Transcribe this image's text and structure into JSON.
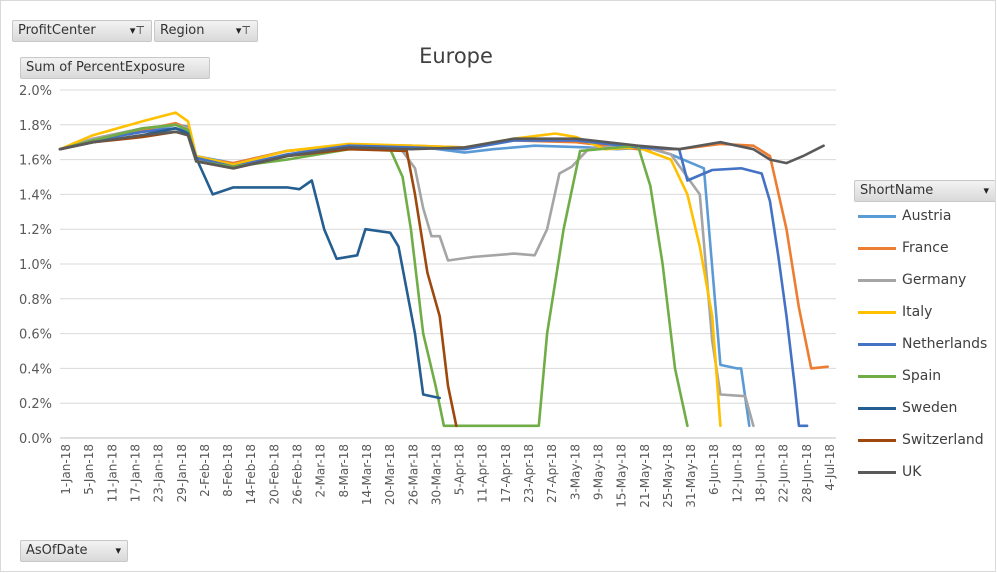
{
  "filters": {
    "profit_center": "ProfitCenter",
    "region": "Region",
    "values_field": "Sum of PercentExposure",
    "series_field": "ShortName",
    "axis_field": "AsOfDate"
  },
  "icons": {
    "filter": "filter-dropdown-icon",
    "dropdown": "dropdown-arrow-icon"
  },
  "chart_data": {
    "type": "line",
    "title": "Europe",
    "xlabel": "",
    "ylabel": "",
    "ylim": [
      0,
      0.02
    ],
    "y_ticks": [
      "0.0%",
      "0.2%",
      "0.4%",
      "0.6%",
      "0.8%",
      "1.0%",
      "1.2%",
      "1.4%",
      "1.6%",
      "1.8%",
      "2.0%"
    ],
    "x_tick_labels": [
      "1-Jan-18",
      "5-Jan-18",
      "11-Jan-18",
      "17-Jan-18",
      "23-Jan-18",
      "29-Jan-18",
      "2-Feb-18",
      "8-Feb-18",
      "14-Feb-18",
      "20-Feb-18",
      "26-Feb-18",
      "2-Mar-18",
      "8-Mar-18",
      "14-Mar-18",
      "20-Mar-18",
      "26-Mar-18",
      "30-Mar-18",
      "5-Apr-18",
      "11-Apr-18",
      "17-Apr-18",
      "23-Apr-18",
      "27-Apr-18",
      "3-May-18",
      "9-May-18",
      "15-May-18",
      "21-May-18",
      "25-May-18",
      "31-May-18",
      "6-Jun-18",
      "12-Jun-18",
      "18-Jun-18",
      "22-Jun-18",
      "28-Jun-18",
      "4-Jul-18"
    ],
    "grid": true,
    "legend_position": "right",
    "x_format": "day index from 1-Jan-18",
    "series": [
      {
        "name": "Austria",
        "color": "#5B9BD5",
        "points": [
          [
            0,
            1.66
          ],
          [
            8,
            1.72
          ],
          [
            20,
            1.76
          ],
          [
            28,
            1.8
          ],
          [
            31,
            1.79
          ],
          [
            33,
            1.62
          ],
          [
            42,
            1.58
          ],
          [
            55,
            1.65
          ],
          [
            70,
            1.68
          ],
          [
            85,
            1.68
          ],
          [
            98,
            1.64
          ],
          [
            105,
            1.66
          ],
          [
            115,
            1.68
          ],
          [
            128,
            1.67
          ],
          [
            135,
            1.66
          ],
          [
            142,
            1.67
          ],
          [
            148,
            1.63
          ],
          [
            156,
            1.55
          ],
          [
            160,
            0.42
          ],
          [
            164,
            0.4
          ],
          [
            165,
            0.4
          ],
          [
            167,
            0.07
          ]
        ]
      },
      {
        "name": "France",
        "color": "#ED7D31",
        "points": [
          [
            0,
            1.66
          ],
          [
            8,
            1.71
          ],
          [
            20,
            1.77
          ],
          [
            28,
            1.81
          ],
          [
            31,
            1.78
          ],
          [
            33,
            1.61
          ],
          [
            42,
            1.58
          ],
          [
            55,
            1.65
          ],
          [
            70,
            1.68
          ],
          [
            85,
            1.68
          ],
          [
            98,
            1.67
          ],
          [
            110,
            1.71
          ],
          [
            125,
            1.7
          ],
          [
            140,
            1.66
          ],
          [
            150,
            1.66
          ],
          [
            160,
            1.69
          ],
          [
            168,
            1.68
          ],
          [
            172,
            1.62
          ],
          [
            176,
            1.2
          ],
          [
            179,
            0.75
          ],
          [
            182,
            0.4
          ],
          [
            186,
            0.41
          ]
        ]
      },
      {
        "name": "Germany",
        "color": "#A5A5A5",
        "points": [
          [
            0,
            1.66
          ],
          [
            8,
            1.72
          ],
          [
            20,
            1.78
          ],
          [
            28,
            1.8
          ],
          [
            31,
            1.78
          ],
          [
            33,
            1.6
          ],
          [
            42,
            1.57
          ],
          [
            55,
            1.65
          ],
          [
            70,
            1.68
          ],
          [
            82,
            1.68
          ],
          [
            86,
            1.55
          ],
          [
            88,
            1.32
          ],
          [
            90,
            1.16
          ],
          [
            92,
            1.16
          ],
          [
            94,
            1.02
          ],
          [
            100,
            1.04
          ],
          [
            110,
            1.06
          ],
          [
            115,
            1.05
          ],
          [
            118,
            1.2
          ],
          [
            121,
            1.52
          ],
          [
            124,
            1.56
          ],
          [
            128,
            1.66
          ],
          [
            136,
            1.68
          ],
          [
            142,
            1.67
          ],
          [
            148,
            1.63
          ],
          [
            155,
            1.4
          ],
          [
            158,
            0.56
          ],
          [
            160,
            0.25
          ],
          [
            166,
            0.24
          ],
          [
            168,
            0.07
          ]
        ]
      },
      {
        "name": "Italy",
        "color": "#FFC000",
        "points": [
          [
            0,
            1.66
          ],
          [
            8,
            1.74
          ],
          [
            20,
            1.82
          ],
          [
            28,
            1.87
          ],
          [
            31,
            1.82
          ],
          [
            33,
            1.62
          ],
          [
            42,
            1.57
          ],
          [
            55,
            1.65
          ],
          [
            70,
            1.69
          ],
          [
            85,
            1.68
          ],
          [
            98,
            1.67
          ],
          [
            110,
            1.72
          ],
          [
            120,
            1.75
          ],
          [
            125,
            1.73
          ],
          [
            132,
            1.66
          ],
          [
            140,
            1.67
          ],
          [
            148,
            1.6
          ],
          [
            152,
            1.4
          ],
          [
            155,
            1.1
          ],
          [
            158,
            0.7
          ],
          [
            160,
            0.07
          ]
        ]
      },
      {
        "name": "Netherlands",
        "color": "#4472C4",
        "points": [
          [
            0,
            1.66
          ],
          [
            8,
            1.71
          ],
          [
            20,
            1.76
          ],
          [
            28,
            1.78
          ],
          [
            31,
            1.76
          ],
          [
            33,
            1.61
          ],
          [
            42,
            1.56
          ],
          [
            55,
            1.63
          ],
          [
            70,
            1.68
          ],
          [
            85,
            1.67
          ],
          [
            98,
            1.66
          ],
          [
            110,
            1.71
          ],
          [
            125,
            1.71
          ],
          [
            140,
            1.67
          ],
          [
            150,
            1.66
          ],
          [
            152,
            1.48
          ],
          [
            158,
            1.54
          ],
          [
            165,
            1.55
          ],
          [
            170,
            1.52
          ],
          [
            172,
            1.36
          ],
          [
            174,
            1.05
          ],
          [
            176,
            0.7
          ],
          [
            178,
            0.3
          ],
          [
            179,
            0.07
          ],
          [
            181,
            0.07
          ]
        ]
      },
      {
        "name": "Spain",
        "color": "#70AD47",
        "points": [
          [
            0,
            1.66
          ],
          [
            8,
            1.71
          ],
          [
            20,
            1.78
          ],
          [
            28,
            1.8
          ],
          [
            31,
            1.77
          ],
          [
            33,
            1.59
          ],
          [
            42,
            1.56
          ],
          [
            55,
            1.6
          ],
          [
            70,
            1.66
          ],
          [
            80,
            1.66
          ],
          [
            83,
            1.5
          ],
          [
            85,
            1.2
          ],
          [
            88,
            0.6
          ],
          [
            91,
            0.3
          ],
          [
            93,
            0.07
          ],
          [
            116,
            0.07
          ],
          [
            118,
            0.6
          ],
          [
            122,
            1.2
          ],
          [
            126,
            1.65
          ],
          [
            140,
            1.68
          ],
          [
            143,
            1.45
          ],
          [
            146,
            1.0
          ],
          [
            149,
            0.4
          ],
          [
            152,
            0.07
          ]
        ]
      },
      {
        "name": "Sweden",
        "color": "#255E91",
        "points": [
          [
            0,
            1.66
          ],
          [
            8,
            1.7
          ],
          [
            20,
            1.74
          ],
          [
            28,
            1.78
          ],
          [
            31,
            1.75
          ],
          [
            33,
            1.61
          ],
          [
            37,
            1.4
          ],
          [
            42,
            1.44
          ],
          [
            55,
            1.44
          ],
          [
            58,
            1.43
          ],
          [
            61,
            1.48
          ],
          [
            64,
            1.2
          ],
          [
            67,
            1.03
          ],
          [
            72,
            1.05
          ],
          [
            74,
            1.2
          ],
          [
            80,
            1.18
          ],
          [
            82,
            1.1
          ],
          [
            86,
            0.6
          ],
          [
            88,
            0.25
          ],
          [
            92,
            0.23
          ]
        ]
      },
      {
        "name": "Switzerland",
        "color": "#9E480E",
        "points": [
          [
            0,
            1.66
          ],
          [
            8,
            1.7
          ],
          [
            20,
            1.73
          ],
          [
            28,
            1.76
          ],
          [
            31,
            1.74
          ],
          [
            33,
            1.59
          ],
          [
            42,
            1.55
          ],
          [
            55,
            1.62
          ],
          [
            70,
            1.66
          ],
          [
            84,
            1.65
          ],
          [
            86,
            1.4
          ],
          [
            89,
            0.95
          ],
          [
            92,
            0.7
          ],
          [
            94,
            0.3
          ],
          [
            96,
            0.07
          ]
        ]
      },
      {
        "name": "UK",
        "color": "#5A5A5A",
        "points": [
          [
            0,
            1.66
          ],
          [
            8,
            1.7
          ],
          [
            20,
            1.74
          ],
          [
            28,
            1.76
          ],
          [
            31,
            1.74
          ],
          [
            33,
            1.59
          ],
          [
            42,
            1.55
          ],
          [
            55,
            1.62
          ],
          [
            70,
            1.67
          ],
          [
            85,
            1.66
          ],
          [
            98,
            1.67
          ],
          [
            110,
            1.72
          ],
          [
            125,
            1.72
          ],
          [
            140,
            1.68
          ],
          [
            150,
            1.66
          ],
          [
            160,
            1.7
          ],
          [
            168,
            1.66
          ],
          [
            172,
            1.6
          ],
          [
            176,
            1.58
          ],
          [
            180,
            1.62
          ],
          [
            185,
            1.68
          ]
        ]
      }
    ]
  }
}
